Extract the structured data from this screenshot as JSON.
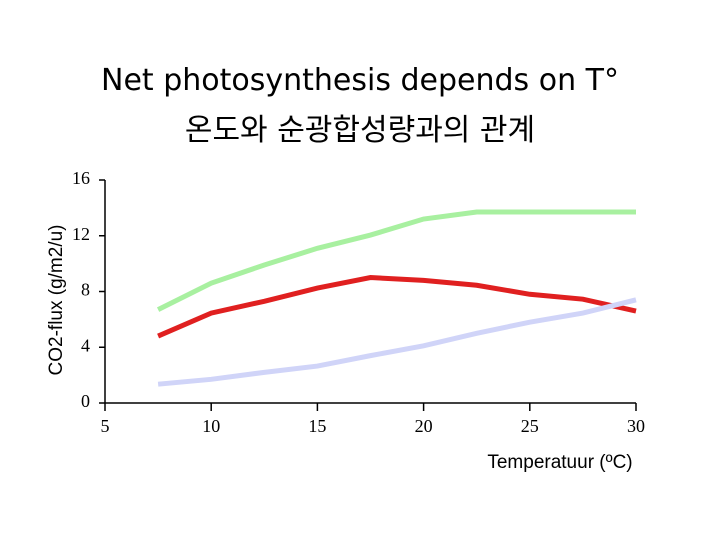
{
  "chart_data": {
    "type": "line",
    "title": "Net photosynthesis depends on T°",
    "subtitle": "온도와 순광합성량과의 관계",
    "x_label": "Temperatuur (ºC)",
    "y_label": "CO2-flux (g/m2/u)",
    "x": [
      7.5,
      10,
      12.5,
      15,
      17.5,
      20,
      22.5,
      25,
      27.5,
      30
    ],
    "series": [
      {
        "color": "#a8f0a0",
        "values": [
          6.7,
          8.6,
          9.9,
          11.1,
          12.05,
          13.2,
          13.7,
          13.7,
          13.7,
          13.7
        ]
      },
      {
        "color": "#e02020",
        "values": [
          4.8,
          6.45,
          7.3,
          8.25,
          9.0,
          8.8,
          8.45,
          7.8,
          7.45,
          6.6
        ]
      },
      {
        "color": "#d0d4f8",
        "values": [
          1.35,
          1.7,
          2.2,
          2.65,
          3.4,
          4.1,
          5.0,
          5.8,
          6.45,
          7.4
        ]
      }
    ],
    "xlim": [
      5,
      30
    ],
    "xticks": [
      5,
      10,
      15,
      20,
      25,
      30
    ],
    "ylim": [
      0,
      16
    ],
    "yticks": [
      0,
      4,
      8,
      12,
      16
    ],
    "grid": false
  }
}
